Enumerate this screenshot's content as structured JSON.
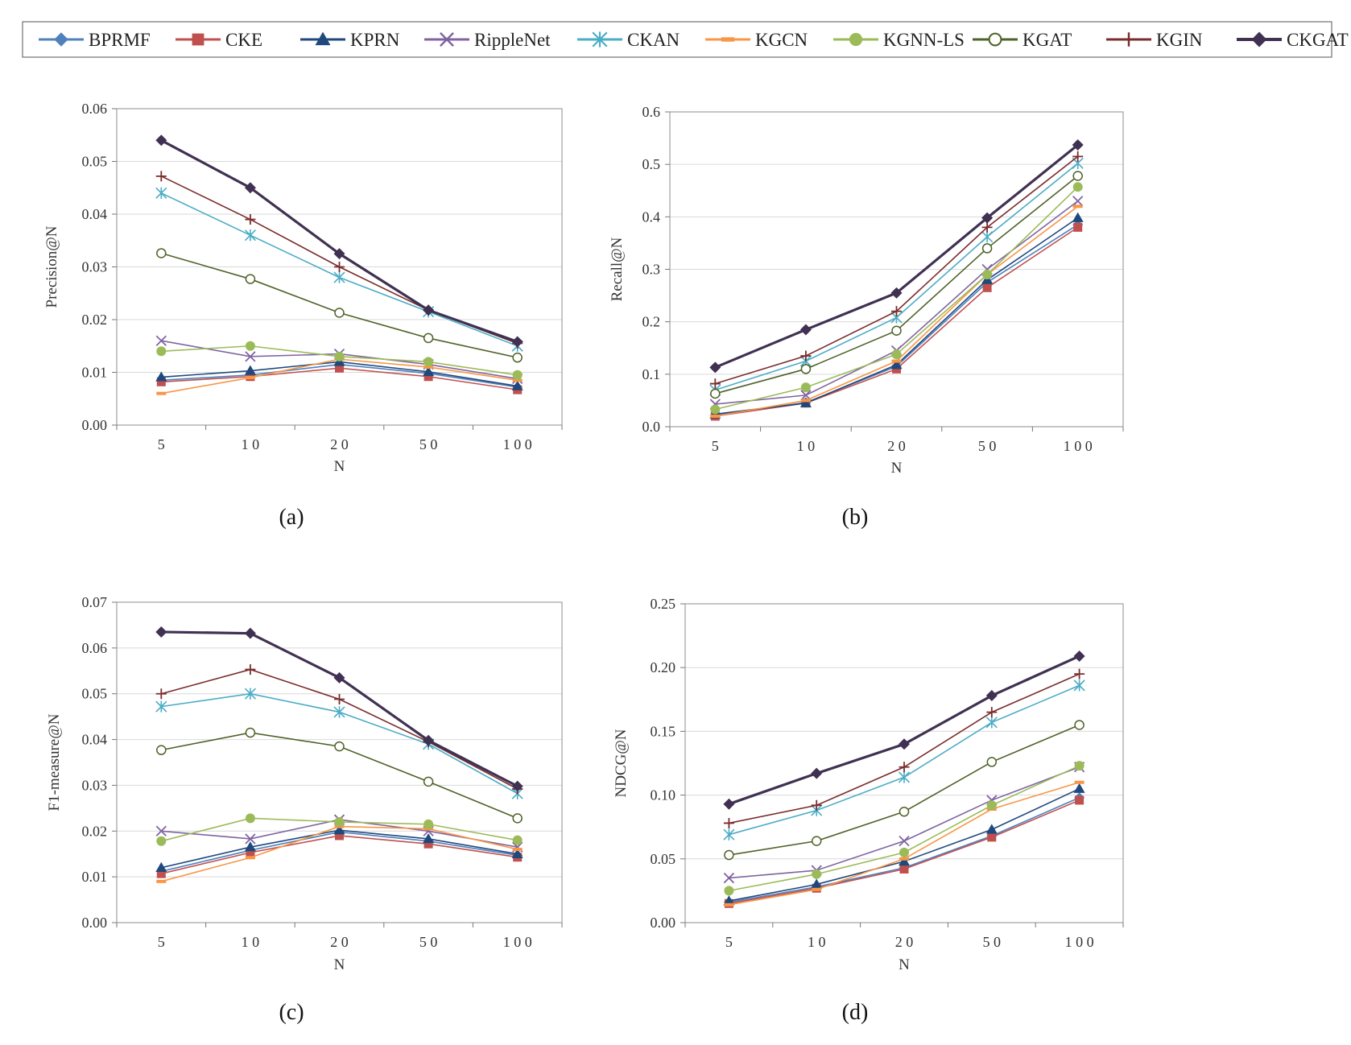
{
  "legend": [
    {
      "name": "BPRMF",
      "color": "#4F81BD",
      "marker": "diamond",
      "marker_name": "diamond-marker-icon"
    },
    {
      "name": "CKE",
      "color": "#C0504D",
      "marker": "square",
      "marker_name": "square-marker-icon"
    },
    {
      "name": "KPRN",
      "color": "#1F497D",
      "marker": "triangle",
      "marker_name": "triangle-marker-icon"
    },
    {
      "name": "RippleNet",
      "color": "#8064A2",
      "marker": "x",
      "marker_name": "x-marker-icon"
    },
    {
      "name": "CKAN",
      "color": "#4BACC6",
      "marker": "star",
      "marker_name": "star-marker-icon"
    },
    {
      "name": "KGCN",
      "color": "#F79646",
      "marker": "dash",
      "marker_name": "dash-marker-icon"
    },
    {
      "name": "KGNN-LS",
      "color": "#9BBB59",
      "marker": "circle",
      "marker_name": "circle-marker-icon"
    },
    {
      "name": "KGAT",
      "color": "#4F6228",
      "marker": "circle-open",
      "marker_name": "open-circle-marker-icon"
    },
    {
      "name": "KGIN",
      "color": "#7B2C2C",
      "marker": "plus",
      "marker_name": "plus-marker-icon"
    },
    {
      "name": "CKGAT",
      "color": "#403152",
      "marker": "diamond-thick",
      "marker_name": "diamond-marker-icon"
    }
  ],
  "chart_data": [
    {
      "type": "line",
      "caption": "(a)",
      "title": "",
      "xlabel": "N",
      "ylabel": "Precision@N",
      "categories": [
        "5",
        "1 0",
        "2 0",
        "5 0",
        "1 0 0"
      ],
      "ylim": [
        0,
        0.06
      ],
      "yticks": [
        "0.00",
        "0.01",
        "0.02",
        "0.03",
        "0.04",
        "0.05",
        "0.06"
      ],
      "grid": true,
      "series": [
        {
          "name": "BPRMF",
          "values": [
            0.0085,
            0.0095,
            0.0115,
            0.0098,
            0.0072
          ]
        },
        {
          "name": "CKE",
          "values": [
            0.0082,
            0.0092,
            0.0108,
            0.0092,
            0.0067
          ]
        },
        {
          "name": "KPRN",
          "values": [
            0.0091,
            0.0103,
            0.012,
            0.0101,
            0.0074
          ]
        },
        {
          "name": "RippleNet",
          "values": [
            0.016,
            0.013,
            0.0135,
            0.0115,
            0.0088
          ]
        },
        {
          "name": "CKAN",
          "values": [
            0.044,
            0.036,
            0.028,
            0.0215,
            0.015
          ]
        },
        {
          "name": "KGCN",
          "values": [
            0.006,
            0.009,
            0.0125,
            0.011,
            0.0085
          ]
        },
        {
          "name": "KGNN-LS",
          "values": [
            0.014,
            0.015,
            0.013,
            0.012,
            0.0095
          ]
        },
        {
          "name": "KGAT",
          "values": [
            0.0326,
            0.0277,
            0.0213,
            0.0165,
            0.0128
          ]
        },
        {
          "name": "KGIN",
          "values": [
            0.0472,
            0.039,
            0.03,
            0.0218,
            0.0155
          ]
        },
        {
          "name": "CKGAT",
          "values": [
            0.054,
            0.045,
            0.0325,
            0.0218,
            0.0158
          ]
        }
      ]
    },
    {
      "type": "line",
      "caption": "(b)",
      "title": "",
      "xlabel": "N",
      "ylabel": "Recall@N",
      "categories": [
        "5",
        "1 0",
        "2 0",
        "5 0",
        "1 0 0"
      ],
      "ylim": [
        0,
        0.6
      ],
      "yticks": [
        "0.0",
        "0.1",
        "0.2",
        "0.3",
        "0.4",
        "0.5",
        "0.6"
      ],
      "grid": true,
      "series": [
        {
          "name": "BPRMF",
          "values": [
            0.022,
            0.046,
            0.115,
            0.275,
            0.385
          ]
        },
        {
          "name": "CKE",
          "values": [
            0.02,
            0.045,
            0.11,
            0.265,
            0.38
          ]
        },
        {
          "name": "KPRN",
          "values": [
            0.024,
            0.045,
            0.118,
            0.28,
            0.398
          ]
        },
        {
          "name": "RippleNet",
          "values": [
            0.043,
            0.06,
            0.145,
            0.3,
            0.43
          ]
        },
        {
          "name": "CKAN",
          "values": [
            0.07,
            0.125,
            0.208,
            0.362,
            0.502
          ]
        },
        {
          "name": "KGCN",
          "values": [
            0.02,
            0.05,
            0.125,
            0.29,
            0.42
          ]
        },
        {
          "name": "KGNN-LS",
          "values": [
            0.033,
            0.075,
            0.138,
            0.29,
            0.457
          ]
        },
        {
          "name": "KGAT",
          "values": [
            0.063,
            0.11,
            0.183,
            0.34,
            0.478
          ]
        },
        {
          "name": "KGIN",
          "values": [
            0.082,
            0.135,
            0.22,
            0.38,
            0.515
          ]
        },
        {
          "name": "CKGAT",
          "values": [
            0.113,
            0.185,
            0.255,
            0.398,
            0.537
          ]
        }
      ]
    },
    {
      "type": "line",
      "caption": "(c)",
      "title": "",
      "xlabel": "N",
      "ylabel": "F1-measure@N",
      "categories": [
        "5",
        "1 0",
        "2 0",
        "5 0",
        "1 0 0"
      ],
      "ylim": [
        0,
        0.07
      ],
      "yticks": [
        "0.00",
        "0.01",
        "0.02",
        "0.03",
        "0.04",
        "0.05",
        "0.06",
        "0.07"
      ],
      "grid": true,
      "series": [
        {
          "name": "BPRMF",
          "values": [
            0.0112,
            0.0158,
            0.0198,
            0.0178,
            0.0147
          ]
        },
        {
          "name": "CKE",
          "values": [
            0.0107,
            0.0153,
            0.019,
            0.0172,
            0.0143
          ]
        },
        {
          "name": "KPRN",
          "values": [
            0.012,
            0.0165,
            0.0202,
            0.0183,
            0.015
          ]
        },
        {
          "name": "RippleNet",
          "values": [
            0.02,
            0.0183,
            0.0225,
            0.02,
            0.0165
          ]
        },
        {
          "name": "CKAN",
          "values": [
            0.0472,
            0.05,
            0.046,
            0.039,
            0.0282
          ]
        },
        {
          "name": "KGCN",
          "values": [
            0.009,
            0.0142,
            0.021,
            0.0205,
            0.016
          ]
        },
        {
          "name": "KGNN-LS",
          "values": [
            0.0178,
            0.0228,
            0.022,
            0.0215,
            0.018
          ]
        },
        {
          "name": "KGAT",
          "values": [
            0.0377,
            0.0415,
            0.0385,
            0.0308,
            0.0228
          ]
        },
        {
          "name": "KGIN",
          "values": [
            0.05,
            0.0553,
            0.0488,
            0.0395,
            0.0292
          ]
        },
        {
          "name": "CKGAT",
          "values": [
            0.0635,
            0.0632,
            0.0535,
            0.0398,
            0.0298
          ]
        }
      ]
    },
    {
      "type": "line",
      "caption": "(d)",
      "title": "",
      "xlabel": "N",
      "ylabel": "NDCG@N",
      "categories": [
        "5",
        "1 0",
        "2 0",
        "5 0",
        "1 0 0"
      ],
      "ylim": [
        0,
        0.25
      ],
      "yticks": [
        "0.00",
        "0.05",
        "0.10",
        "0.15",
        "0.20",
        "0.25"
      ],
      "grid": true,
      "series": [
        {
          "name": "BPRMF",
          "values": [
            0.016,
            0.028,
            0.043,
            0.068,
            0.098
          ]
        },
        {
          "name": "CKE",
          "values": [
            0.015,
            0.027,
            0.042,
            0.067,
            0.096
          ]
        },
        {
          "name": "KPRN",
          "values": [
            0.017,
            0.03,
            0.048,
            0.073,
            0.105
          ]
        },
        {
          "name": "RippleNet",
          "values": [
            0.035,
            0.041,
            0.064,
            0.096,
            0.122
          ]
        },
        {
          "name": "CKAN",
          "values": [
            0.069,
            0.088,
            0.114,
            0.157,
            0.186
          ]
        },
        {
          "name": "KGCN",
          "values": [
            0.014,
            0.026,
            0.05,
            0.089,
            0.11
          ]
        },
        {
          "name": "KGNN-LS",
          "values": [
            0.025,
            0.038,
            0.055,
            0.092,
            0.123
          ]
        },
        {
          "name": "KGAT",
          "values": [
            0.053,
            0.064,
            0.087,
            0.126,
            0.155
          ]
        },
        {
          "name": "KGIN",
          "values": [
            0.078,
            0.092,
            0.122,
            0.165,
            0.195
          ]
        },
        {
          "name": "CKGAT",
          "values": [
            0.093,
            0.117,
            0.14,
            0.178,
            0.209
          ]
        }
      ]
    }
  ]
}
